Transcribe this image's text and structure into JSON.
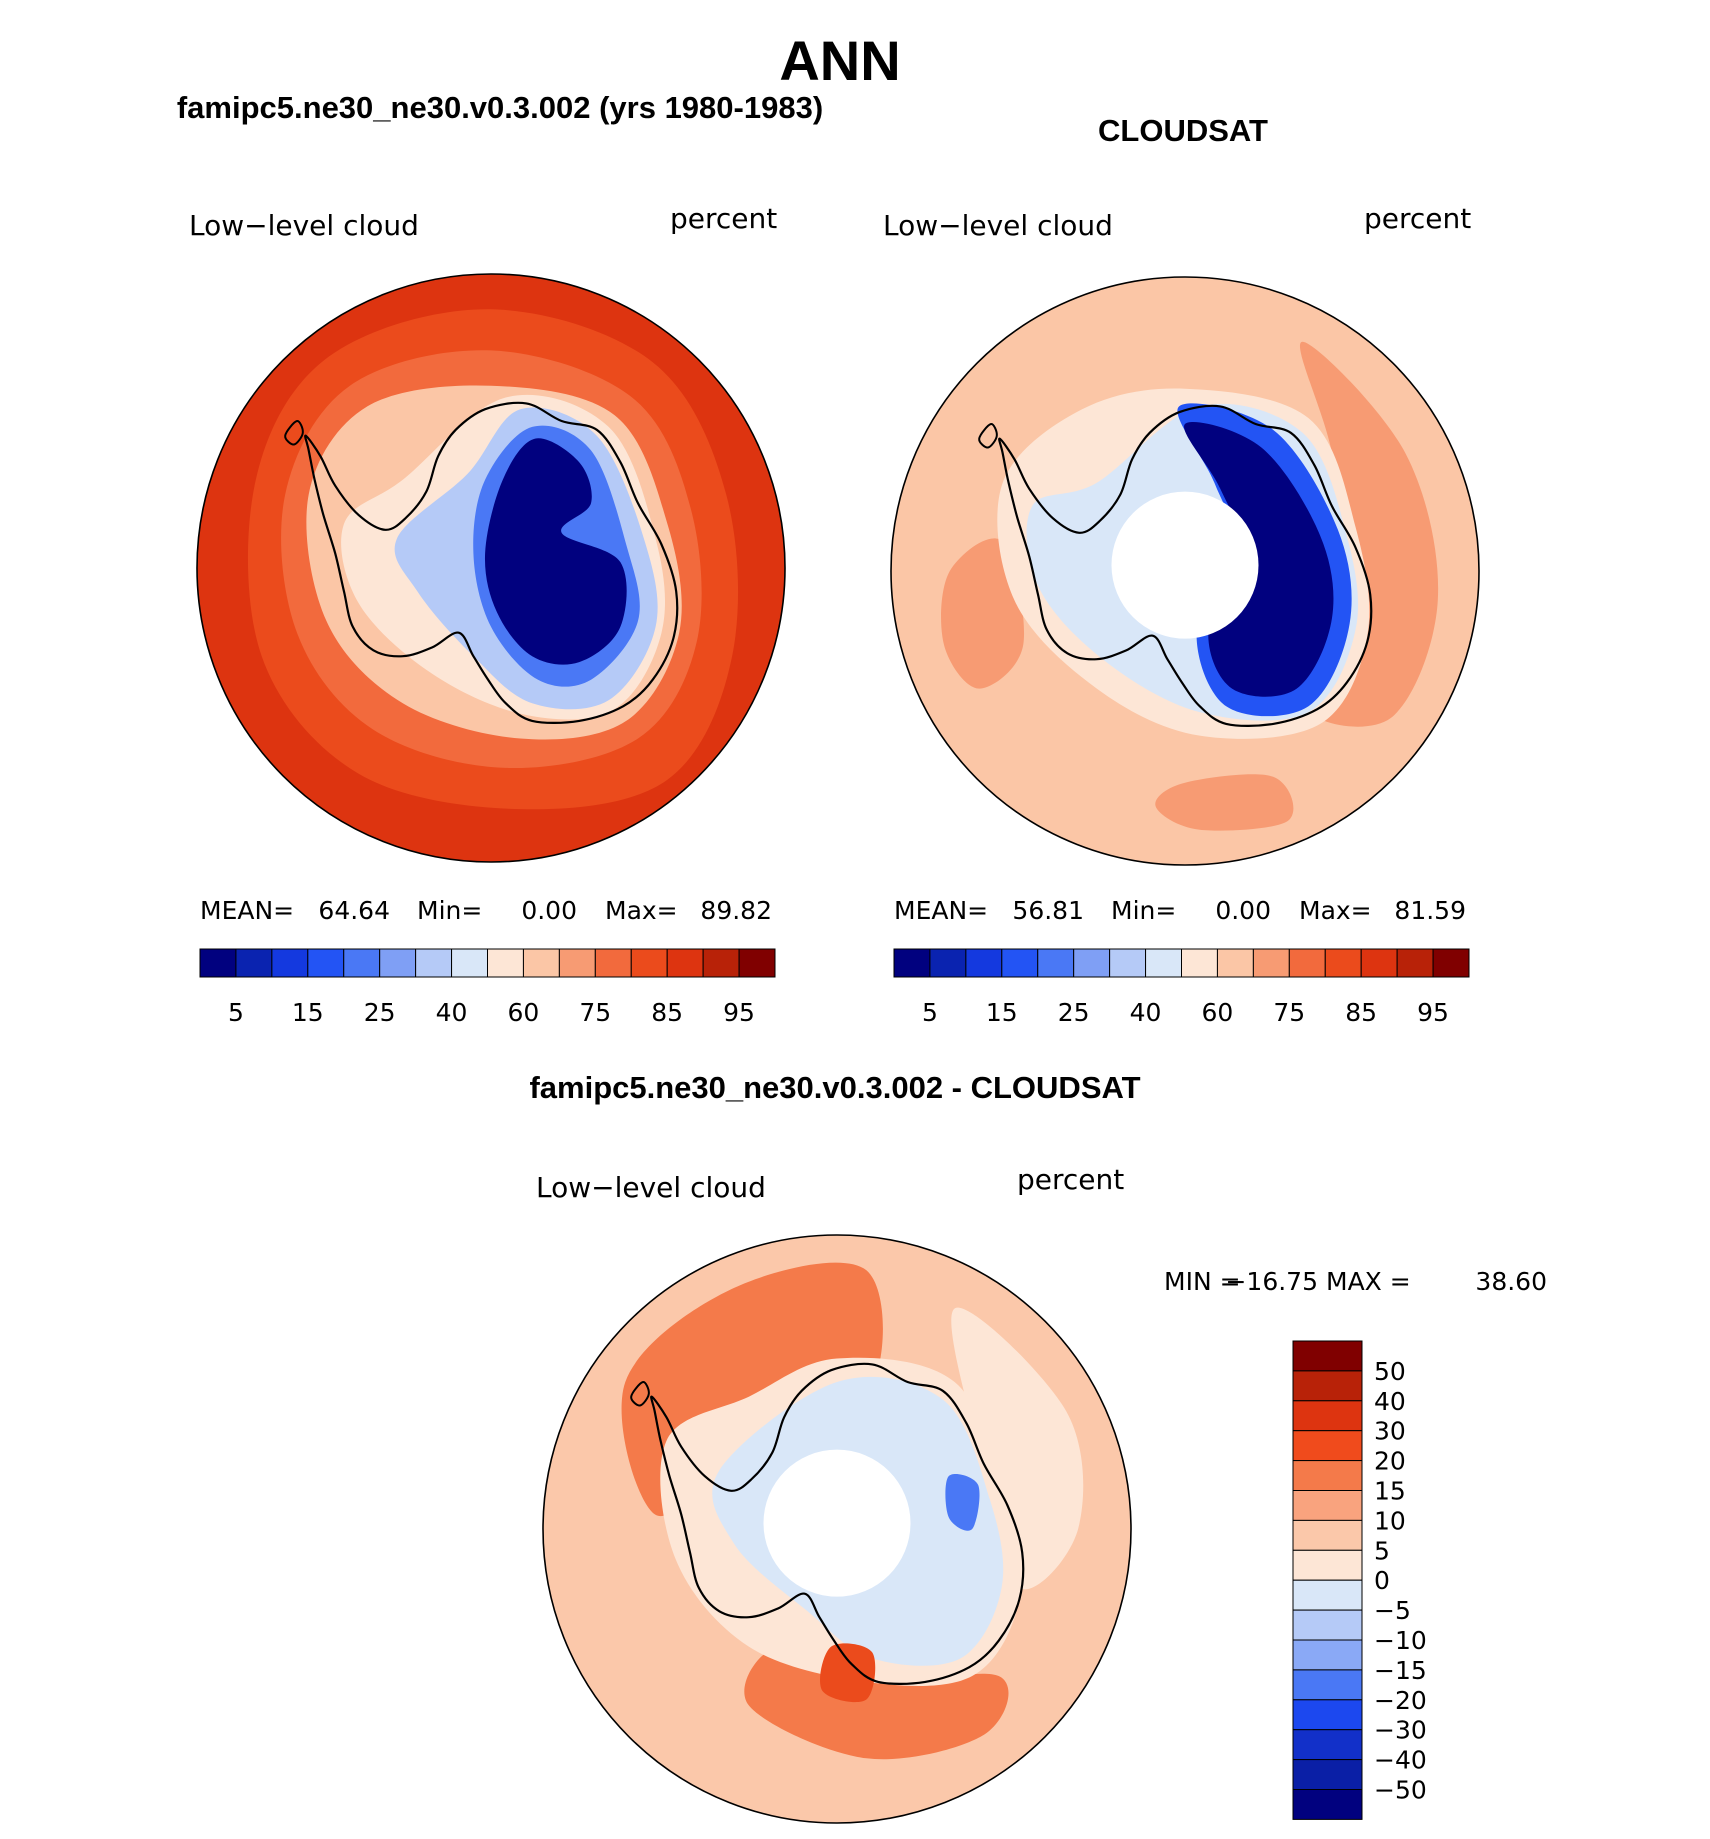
{
  "title": "ANN",
  "chart_data": [
    {
      "type": "heatmap",
      "projection": "south polar stereographic",
      "title": "famipc5.ne30_ne30.v0.3.002 (yrs 1980-1983)",
      "variable": "Low−level cloud",
      "units": "percent",
      "stats": {
        "mean_label": "MEAN=",
        "mean": "64.64",
        "min_label": "Min=",
        "min": "0.00",
        "max_label": "Max=",
        "max": "89.82"
      },
      "colorbar_ticks": [
        "5",
        "15",
        "25",
        "40",
        "60",
        "75",
        "85",
        "95"
      ],
      "colorbar_colors": [
        "#01017f",
        "#0a23b0",
        "#1439df",
        "#2354f4",
        "#4a78f5",
        "#7f9ff5",
        "#b5caf7",
        "#d9e7f8",
        "#fde6d6",
        "#fbc6a6",
        "#f79b73",
        "#f26a3d",
        "#eb4b1c",
        "#dd3410",
        "#b82208",
        "#800000"
      ],
      "colorbar_position": "bottom"
    },
    {
      "type": "heatmap",
      "projection": "south polar stereographic",
      "title": "CLOUDSAT",
      "variable": "Low−level cloud",
      "units": "percent",
      "stats": {
        "mean_label": "MEAN=",
        "mean": "56.81",
        "min_label": "Min=",
        "min": "0.00",
        "max_label": "Max=",
        "max": "81.59"
      },
      "colorbar_ticks": [
        "5",
        "15",
        "25",
        "40",
        "60",
        "75",
        "85",
        "95"
      ],
      "colorbar_colors": [
        "#01017f",
        "#0a23b0",
        "#1439df",
        "#2354f4",
        "#4a78f5",
        "#7f9ff5",
        "#b5caf7",
        "#d9e7f8",
        "#fde6d6",
        "#fbc6a6",
        "#f79b73",
        "#f26a3d",
        "#eb4b1c",
        "#dd3410",
        "#b82208",
        "#800000"
      ],
      "colorbar_position": "bottom"
    },
    {
      "type": "heatmap",
      "projection": "south polar stereographic",
      "title": "famipc5.ne30_ne30.v0.3.002 - CLOUDSAT",
      "variable": "Low−level cloud",
      "units": "percent",
      "stats": {
        "min_label": "MIN =",
        "min": "−16.75",
        "max_label": "MAX =",
        "max": "38.60"
      },
      "colorbar_ticks": [
        "50",
        "40",
        "30",
        "20",
        "15",
        "10",
        "5",
        "0",
        "−5",
        "−10",
        "−15",
        "−20",
        "−30",
        "−40",
        "−50"
      ],
      "colorbar_colors": [
        "#800000",
        "#b82208",
        "#dd3410",
        "#f04b1c",
        "#f47a4a",
        "#f9a37e",
        "#fbc8aa",
        "#fde6d6",
        "#d9e7f8",
        "#b5caf7",
        "#8aa9f6",
        "#4a78f5",
        "#1c48ef",
        "#1230c9",
        "#0a1fa6",
        "#01017f"
      ],
      "colorbar_position": "right"
    }
  ]
}
